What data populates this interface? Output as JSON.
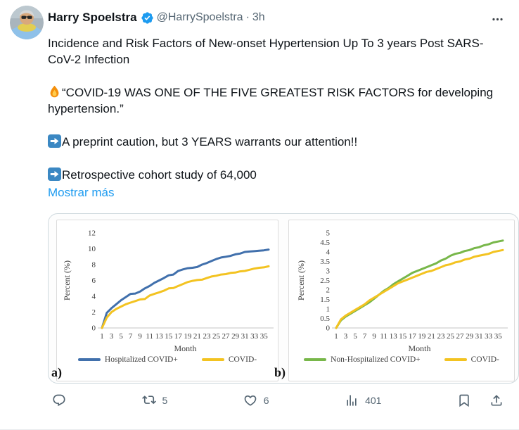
{
  "tweet": {
    "author": "Harry Spoelstra",
    "handle": "@HarrySpoelstra",
    "separator": "·",
    "timestamp": "3h",
    "body": {
      "line1": "Incidence and Risk Factors of New-onset Hypertension Up To 3 years Post SARS-CoV-2 Infection",
      "fire_line": "“COVID-19 WAS ONE OF THE FIVE GREATEST RISK FACTORS for developing hypertension.”",
      "arrow_line1": "A preprint caution, but 3 YEARS warrants our attention!!",
      "arrow_line2": "Retrospective cohort study of 64,000",
      "show_more": "Mostrar más"
    },
    "actions": {
      "retweet_count": "5",
      "like_count": "6",
      "view_count": "401"
    }
  },
  "colors": {
    "accent_blue": "#1d9bf0",
    "text_primary": "#0f1419",
    "text_secondary": "#536471",
    "line_blue": "#4170ac",
    "line_yellow": "#f3c321",
    "line_green": "#78b74a"
  },
  "chart_data": [
    {
      "type": "line",
      "panel_label": "a)",
      "xlabel": "Month",
      "ylabel": "Percent (%)",
      "ylim": [
        0,
        12
      ],
      "yticks": [
        0,
        2,
        4,
        6,
        8,
        10,
        12
      ],
      "xticks": [
        1,
        3,
        5,
        7,
        9,
        11,
        13,
        15,
        17,
        19,
        21,
        23,
        25,
        27,
        29,
        31,
        33,
        35
      ],
      "x_range": [
        1,
        36
      ],
      "grid": false,
      "legend_position": "bottom",
      "series": [
        {
          "name": "Hospitalized COVID+",
          "color": "#4170ac",
          "values": [
            0,
            1.9,
            2.5,
            3.0,
            3.5,
            3.9,
            4.3,
            4.35,
            4.6,
            5.0,
            5.3,
            5.7,
            6.0,
            6.3,
            6.65,
            6.75,
            7.2,
            7.4,
            7.55,
            7.6,
            7.7,
            8.0,
            8.2,
            8.45,
            8.7,
            8.9,
            9.0,
            9.1,
            9.3,
            9.4,
            9.6,
            9.65,
            9.7,
            9.75,
            9.8,
            9.9
          ]
        },
        {
          "name": "COVID-",
          "color": "#f3c321",
          "values": [
            0,
            1.3,
            2.0,
            2.4,
            2.7,
            3.0,
            3.2,
            3.4,
            3.6,
            3.65,
            4.1,
            4.3,
            4.5,
            4.7,
            5.0,
            5.05,
            5.3,
            5.55,
            5.8,
            5.95,
            6.05,
            6.1,
            6.3,
            6.5,
            6.6,
            6.75,
            6.8,
            6.95,
            7.0,
            7.15,
            7.2,
            7.35,
            7.5,
            7.6,
            7.65,
            7.8
          ]
        }
      ]
    },
    {
      "type": "line",
      "panel_label": "b)",
      "xlabel": "Month",
      "ylabel": "Percent (%)",
      "ylim": [
        0,
        5
      ],
      "yticks": [
        0,
        0.5,
        1,
        1.5,
        2,
        2.5,
        3,
        3.5,
        4,
        4.5,
        5
      ],
      "xticks": [
        1,
        3,
        5,
        7,
        9,
        11,
        13,
        15,
        17,
        19,
        21,
        23,
        25,
        27,
        29,
        31,
        33,
        35
      ],
      "x_range": [
        1,
        36
      ],
      "grid": false,
      "legend_position": "bottom",
      "series": [
        {
          "name": "Non-Hospitalized COVID+",
          "color": "#78b74a",
          "values": [
            0,
            0.4,
            0.6,
            0.75,
            0.9,
            1.05,
            1.2,
            1.35,
            1.55,
            1.75,
            1.95,
            2.1,
            2.3,
            2.45,
            2.6,
            2.75,
            2.9,
            3.0,
            3.1,
            3.2,
            3.3,
            3.4,
            3.55,
            3.65,
            3.8,
            3.9,
            3.95,
            4.05,
            4.1,
            4.2,
            4.25,
            4.35,
            4.4,
            4.5,
            4.55,
            4.6
          ]
        },
        {
          "name": "COVID-",
          "color": "#f3c321",
          "values": [
            0,
            0.45,
            0.65,
            0.8,
            0.95,
            1.1,
            1.25,
            1.45,
            1.6,
            1.75,
            1.9,
            2.05,
            2.2,
            2.35,
            2.45,
            2.55,
            2.65,
            2.75,
            2.85,
            2.95,
            3.0,
            3.1,
            3.2,
            3.3,
            3.35,
            3.45,
            3.5,
            3.6,
            3.65,
            3.75,
            3.8,
            3.85,
            3.9,
            4.0,
            4.05,
            4.1
          ]
        }
      ]
    }
  ]
}
